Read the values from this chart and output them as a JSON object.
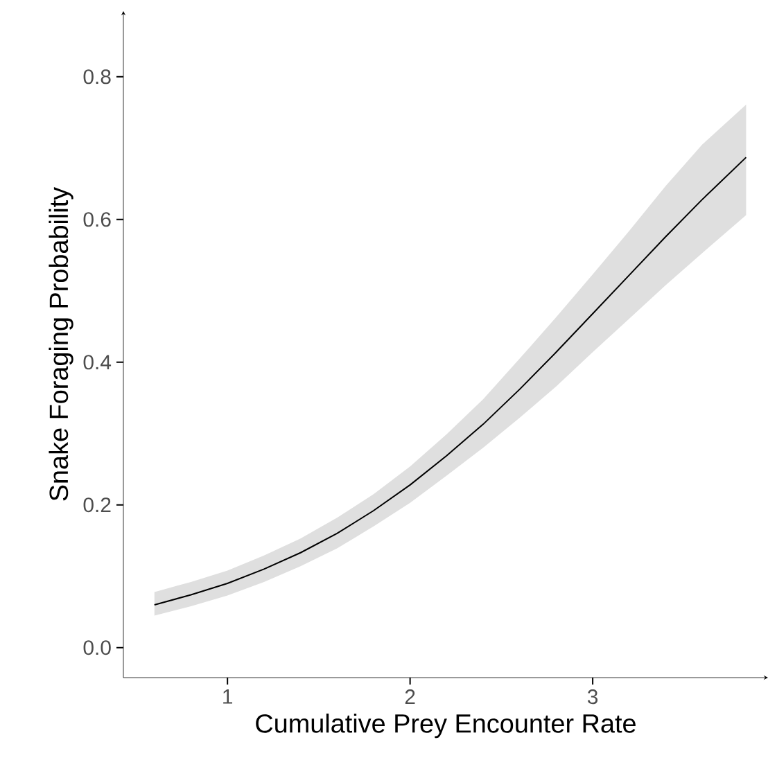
{
  "chart_data": {
    "type": "line",
    "xlabel": "Cumulative Prey Encounter Rate",
    "ylabel": "Snake Foraging Probability",
    "xlim": [
      0.43,
      3.96
    ],
    "ylim": [
      -0.042,
      0.892
    ],
    "xticks": [
      1,
      2,
      3
    ],
    "yticks": [
      {
        "value": 0,
        "label": "0.0"
      },
      0.2,
      0.4,
      0.6,
      0.8
    ],
    "series": [
      {
        "color": "#000000",
        "x": [
          0.6,
          0.8,
          1.0,
          1.2,
          1.4,
          1.6,
          1.8,
          2.0,
          2.2,
          2.4,
          2.6,
          2.8,
          3.0,
          3.2,
          3.4,
          3.6,
          3.84
        ],
        "values": [
          0.06,
          0.074,
          0.09,
          0.11,
          0.133,
          0.16,
          0.192,
          0.228,
          0.269,
          0.313,
          0.362,
          0.414,
          0.468,
          0.522,
          0.576,
          0.628,
          0.687
        ],
        "lower": [
          0.045,
          0.058,
          0.073,
          0.092,
          0.114,
          0.139,
          0.17,
          0.203,
          0.241,
          0.28,
          0.322,
          0.366,
          0.414,
          0.461,
          0.508,
          0.553,
          0.606
        ],
        "upper": [
          0.078,
          0.092,
          0.108,
          0.129,
          0.153,
          0.182,
          0.215,
          0.254,
          0.299,
          0.348,
          0.405,
          0.463,
          0.523,
          0.584,
          0.647,
          0.705,
          0.761
        ]
      }
    ]
  }
}
